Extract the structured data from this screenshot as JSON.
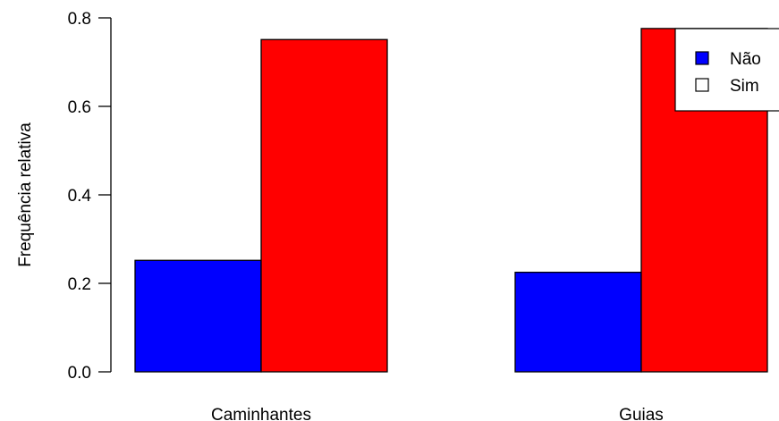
{
  "chart_data": {
    "type": "bar",
    "layout": "grouped",
    "title": "",
    "xlabel": "",
    "ylabel": "Frequência relativa",
    "categories": [
      "Caminhantes",
      "Guias"
    ],
    "series": [
      {
        "name": "Não",
        "color": "#0000ff",
        "values": [
          0.252,
          0.225
        ]
      },
      {
        "name": "Sim",
        "color": "#ff0000",
        "values": [
          0.751,
          0.776
        ]
      }
    ],
    "ylim": [
      0,
      0.8
    ],
    "yticks": [
      "0.0",
      "0.2",
      "0.4",
      "0.6",
      "0.8"
    ],
    "grid": false,
    "legend": {
      "placement": "top-right",
      "entries": [
        {
          "label": "Não",
          "fill": "#0000ff"
        },
        {
          "label": "Sim",
          "fill": "#ffffff"
        }
      ]
    }
  }
}
